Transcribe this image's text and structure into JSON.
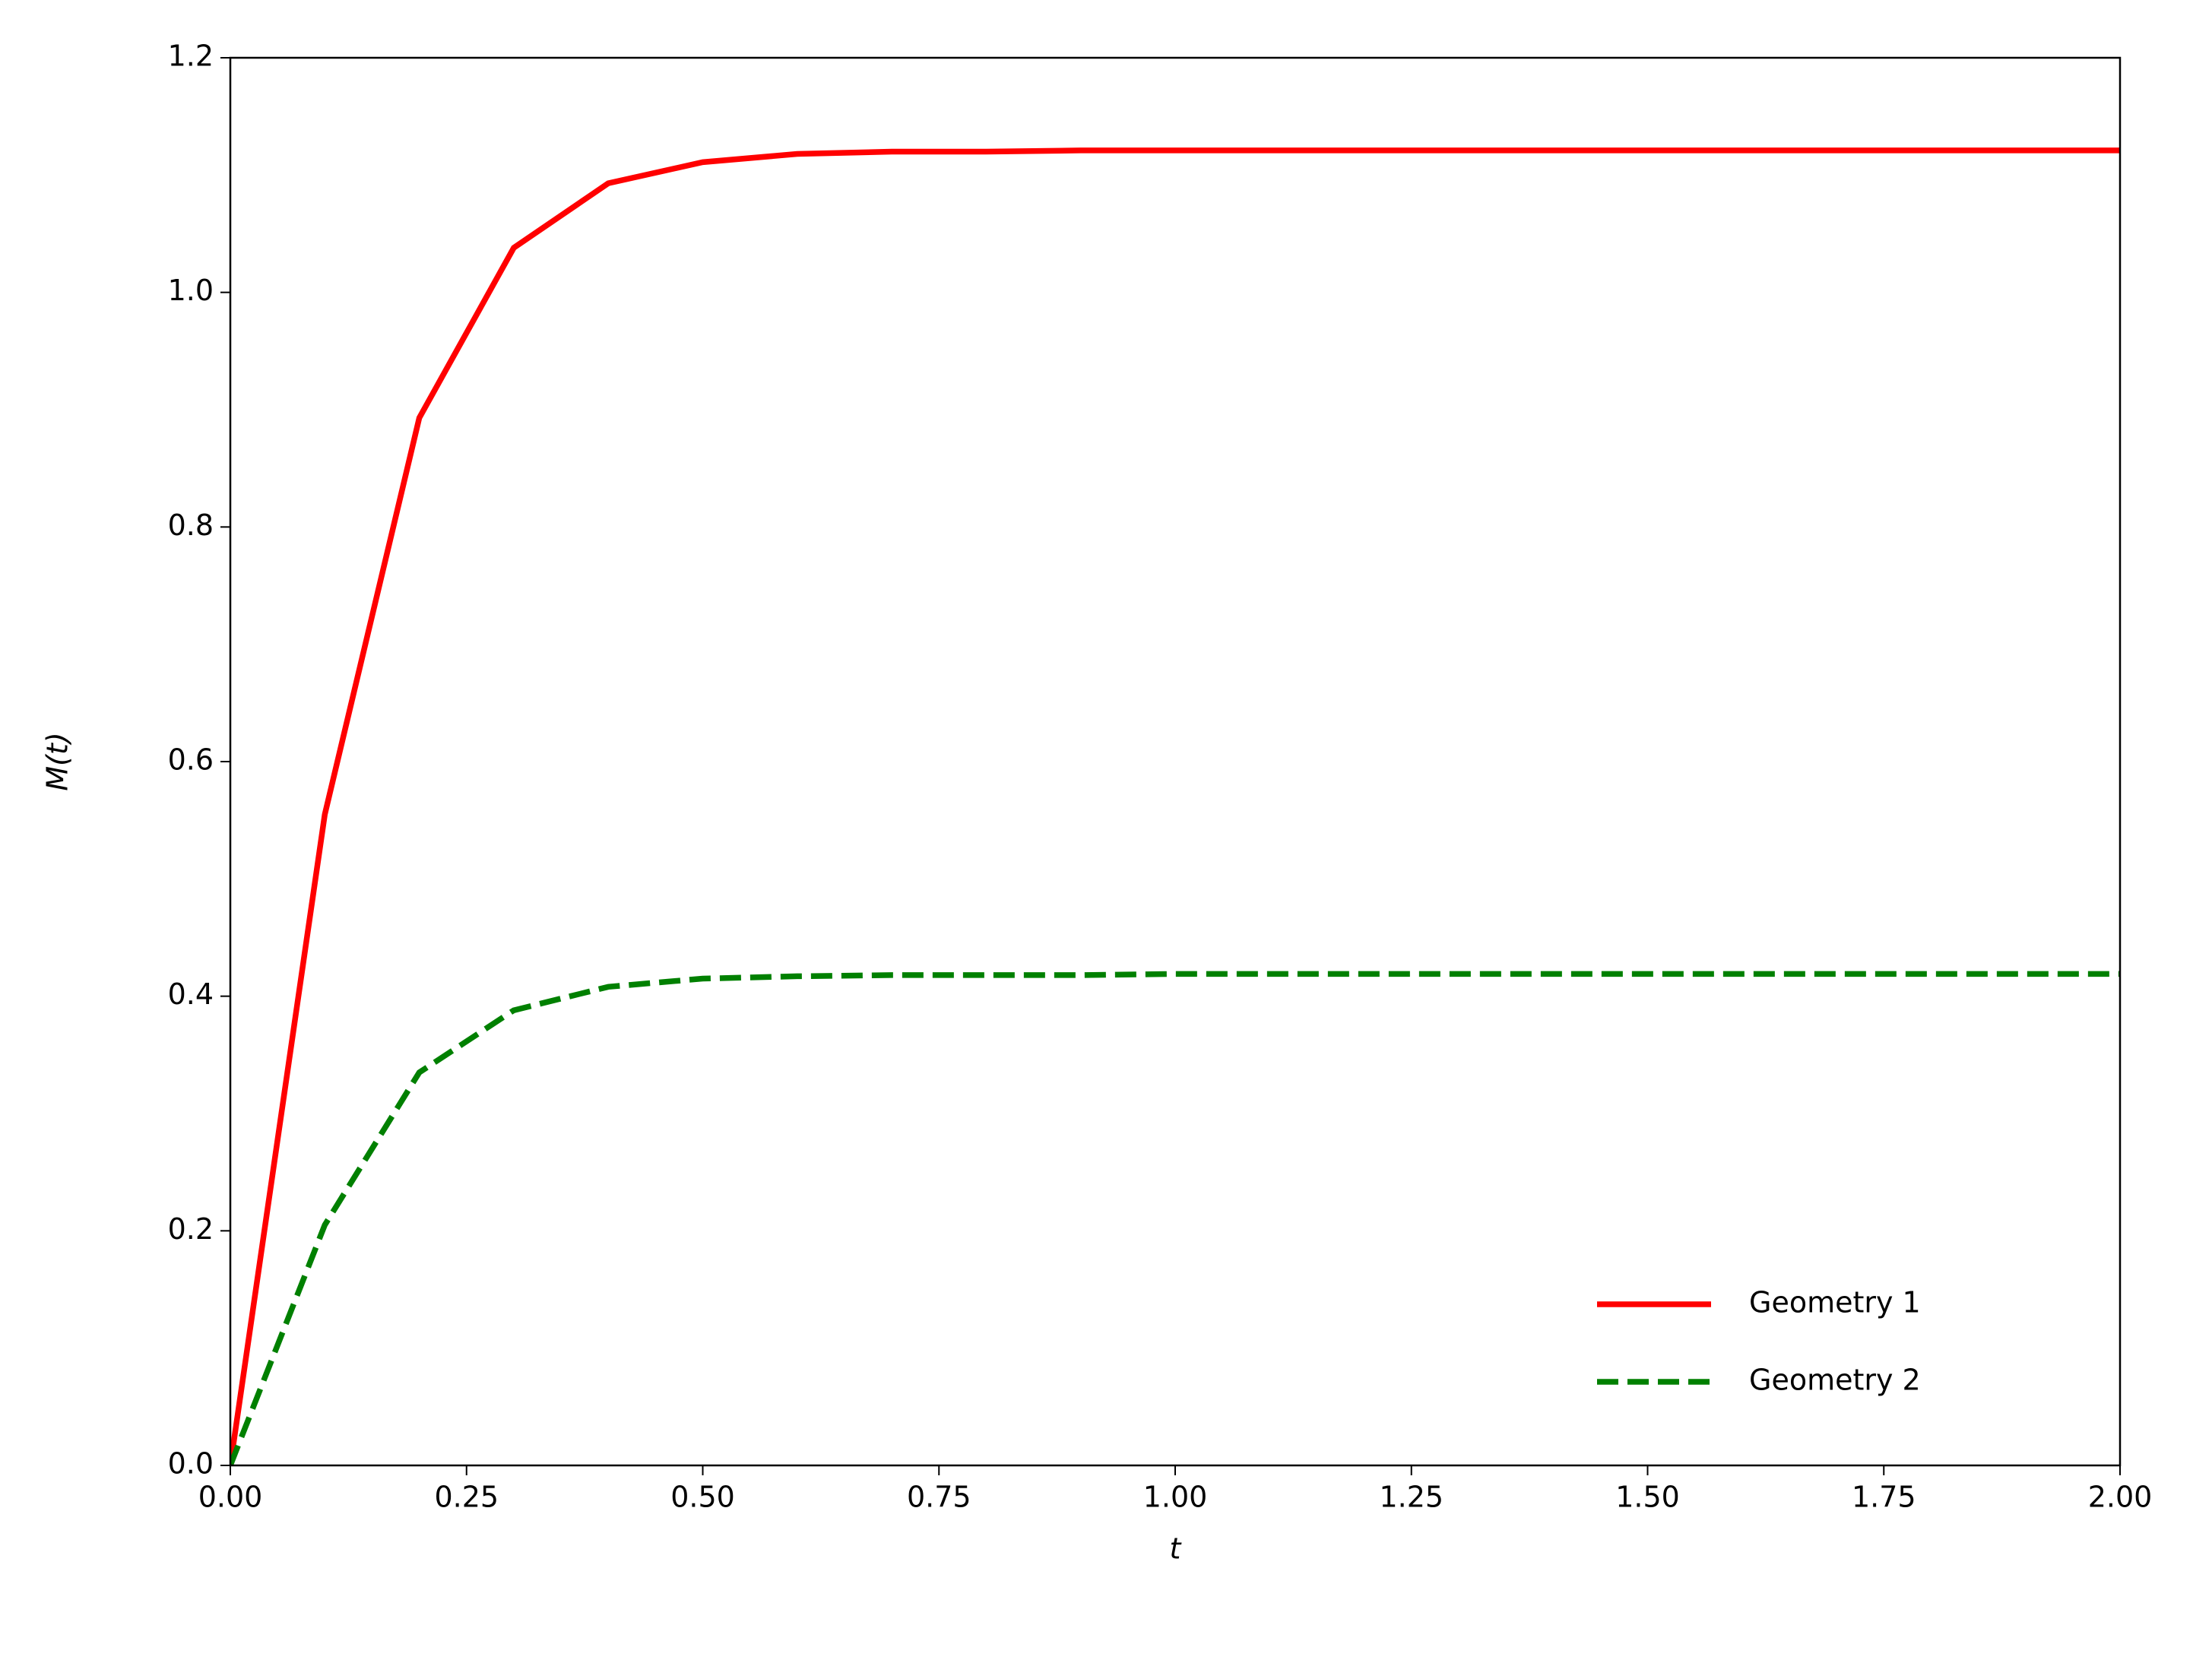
{
  "chart_data": {
    "type": "line",
    "x_label": "t",
    "y_label": "M(t)",
    "x": [
      0,
      0.1,
      0.2,
      0.3,
      0.4,
      0.5,
      0.6,
      0.7,
      0.8,
      0.9,
      1.0,
      1.1,
      1.2,
      1.3,
      1.4,
      1.5,
      1.6,
      1.7,
      1.8,
      1.9,
      2.0
    ],
    "series": [
      {
        "name": "Geometry 1",
        "color": "#ff0000",
        "linestyle": "solid",
        "values": [
          0,
          0.555,
          0.893,
          1.038,
          1.093,
          1.111,
          1.118,
          1.12,
          1.12,
          1.121,
          1.121,
          1.121,
          1.121,
          1.121,
          1.121,
          1.121,
          1.121,
          1.121,
          1.121,
          1.121,
          1.121
        ]
      },
      {
        "name": "Geometry 2",
        "color": "#008000",
        "linestyle": "dashed",
        "values": [
          0,
          0.205,
          0.335,
          0.388,
          0.408,
          0.415,
          0.417,
          0.418,
          0.418,
          0.418,
          0.419,
          0.419,
          0.419,
          0.419,
          0.419,
          0.419,
          0.419,
          0.419,
          0.419,
          0.419,
          0.419
        ]
      }
    ],
    "xlim": [
      0,
      2
    ],
    "ylim": [
      0,
      1.2
    ],
    "xticks": [
      {
        "value": 0,
        "label": "0.00"
      },
      0.25,
      {
        "value": 0.5,
        "label": "0.50"
      },
      0.75,
      {
        "value": 1,
        "label": "1.00"
      },
      1.25,
      {
        "value": 1.5,
        "label": "1.50"
      },
      1.75,
      {
        "value": 2,
        "label": "2.00"
      }
    ],
    "yticks": [
      {
        "value": 0,
        "label": "0.0"
      },
      0.2,
      0.4,
      0.6,
      0.8,
      {
        "value": 1,
        "label": "1.0"
      },
      1.2
    ],
    "grid": false,
    "legend": "lower right"
  }
}
